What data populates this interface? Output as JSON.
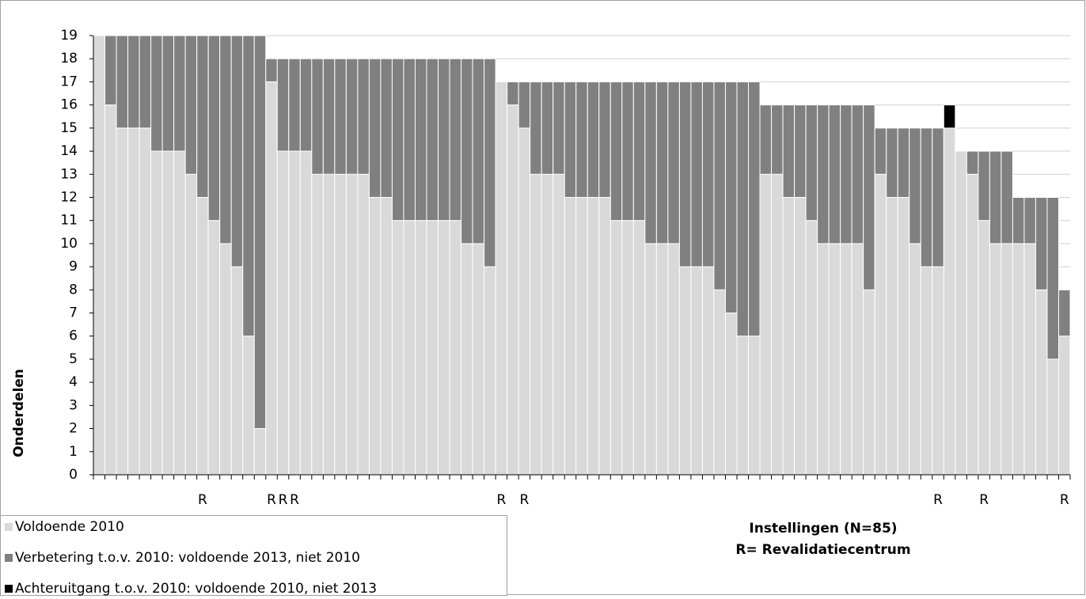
{
  "chart_data": {
    "type": "stacked-bar",
    "ylabel": "Onderdelen",
    "xlabel": [
      "Instellingen  (N=85)",
      "R= Revalidatiecentrum"
    ],
    "categories": [
      null,
      null,
      null,
      null,
      null,
      null,
      null,
      null,
      null,
      "R",
      null,
      null,
      null,
      null,
      null,
      "R",
      "R",
      "R",
      null,
      null,
      null,
      null,
      null,
      null,
      null,
      null,
      null,
      null,
      null,
      null,
      null,
      null,
      null,
      null,
      null,
      "R",
      null,
      "R",
      null,
      null,
      null,
      null,
      null,
      null,
      null,
      null,
      null,
      null,
      null,
      null,
      null,
      null,
      null,
      null,
      null,
      null,
      null,
      null,
      null,
      null,
      null,
      null,
      null,
      null,
      null,
      null,
      null,
      null,
      null,
      null,
      null,
      null,
      null,
      "R",
      null,
      null,
      null,
      "R",
      null,
      null,
      null,
      null,
      null,
      null,
      "R"
    ],
    "series": [
      {
        "name": "Voldoende 2010",
        "color": "#d9d9d9",
        "values": [
          19,
          16,
          15,
          15,
          15,
          14,
          14,
          14,
          13,
          12,
          11,
          10,
          9,
          6,
          2,
          17,
          14,
          14,
          14,
          13,
          13,
          13,
          13,
          13,
          12,
          12,
          11,
          11,
          11,
          11,
          11,
          11,
          10,
          10,
          9,
          17,
          16,
          15,
          13,
          13,
          13,
          12,
          12,
          12,
          12,
          11,
          11,
          11,
          10,
          10,
          10,
          9,
          9,
          9,
          8,
          7,
          6,
          6,
          13,
          13,
          12,
          12,
          11,
          10,
          10,
          10,
          10,
          8,
          13,
          12,
          12,
          10,
          9,
          9,
          15,
          14,
          13,
          11,
          10,
          10,
          10,
          10,
          8,
          5,
          6
        ]
      },
      {
        "name": "Verbetering t.o.v. 2010: voldoende 2013, niet 2010",
        "color": "#808080",
        "values": [
          0,
          3,
          4,
          4,
          4,
          5,
          5,
          5,
          6,
          7,
          8,
          9,
          10,
          13,
          17,
          1,
          4,
          4,
          4,
          5,
          5,
          5,
          5,
          5,
          6,
          6,
          7,
          7,
          7,
          7,
          7,
          7,
          8,
          8,
          9,
          0,
          1,
          2,
          4,
          4,
          4,
          5,
          5,
          5,
          5,
          6,
          6,
          6,
          7,
          7,
          7,
          8,
          8,
          8,
          9,
          10,
          11,
          11,
          3,
          3,
          4,
          4,
          5,
          6,
          6,
          6,
          6,
          8,
          2,
          3,
          3,
          5,
          6,
          6,
          0,
          0,
          1,
          3,
          4,
          4,
          2,
          2,
          4,
          7,
          2
        ]
      },
      {
        "name": "Achteruitgang t.o.v. 2010: voldoende 2010, niet 2013",
        "color": "#000000",
        "values": [
          0,
          0,
          0,
          0,
          0,
          0,
          0,
          0,
          0,
          0,
          0,
          0,
          0,
          0,
          0,
          0,
          0,
          0,
          0,
          0,
          0,
          0,
          0,
          0,
          0,
          0,
          0,
          0,
          0,
          0,
          0,
          0,
          0,
          0,
          0,
          0,
          0,
          0,
          0,
          0,
          0,
          0,
          0,
          0,
          0,
          0,
          0,
          0,
          0,
          0,
          0,
          0,
          0,
          0,
          0,
          0,
          0,
          0,
          0,
          0,
          0,
          0,
          0,
          0,
          0,
          0,
          0,
          0,
          0,
          0,
          0,
          0,
          0,
          0,
          1,
          0,
          0,
          0,
          0,
          0,
          0,
          0,
          0,
          0,
          0
        ]
      }
    ],
    "ylim": [
      0,
      19
    ],
    "yticks": [
      0,
      1,
      2,
      3,
      4,
      5,
      6,
      7,
      8,
      9,
      10,
      11,
      12,
      13,
      14,
      15,
      16,
      17,
      18,
      19
    ],
    "grid": true
  }
}
